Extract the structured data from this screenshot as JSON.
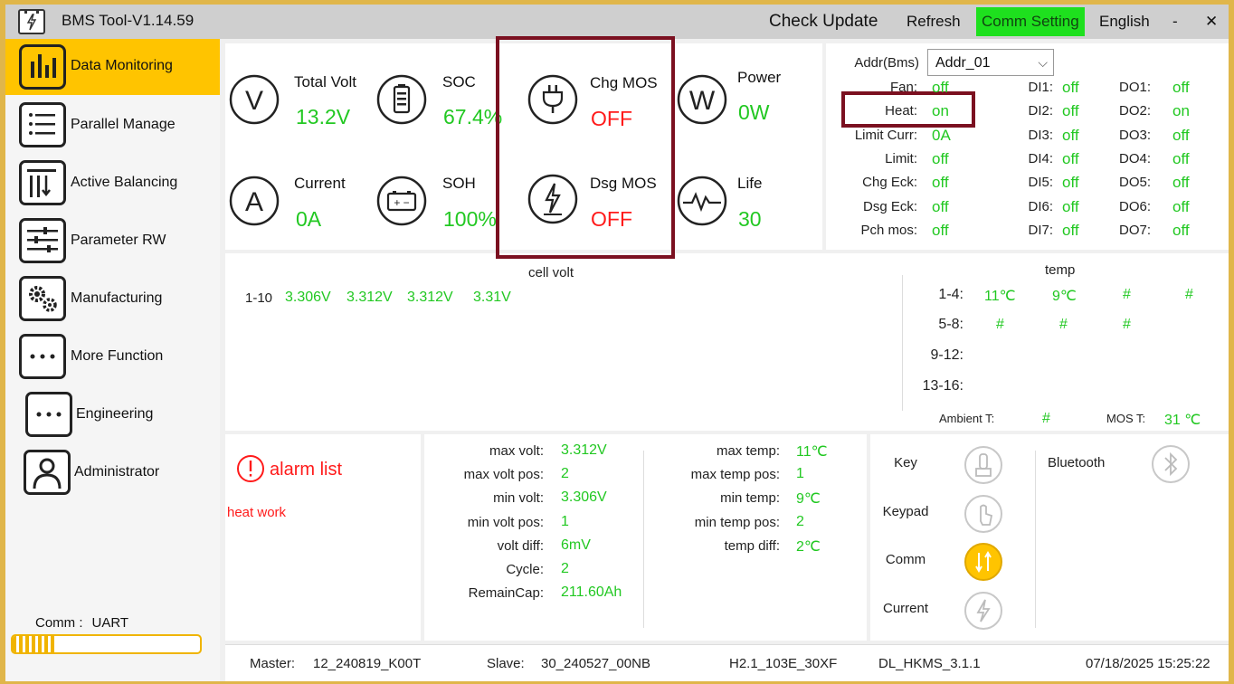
{
  "window": {
    "title": "BMS Tool-V1.14.59",
    "menu": {
      "check_update": "Check Update",
      "refresh": "Refresh",
      "comm_setting": "Comm Setting",
      "language": "English",
      "minimize": "-",
      "close": "✕"
    }
  },
  "sidebar": {
    "items": [
      {
        "label": "Data Monitoring",
        "icon": "bar-chart-icon",
        "active": true
      },
      {
        "label": "Parallel Manage",
        "icon": "list-icon"
      },
      {
        "label": "Active Balancing",
        "icon": "balance-icon"
      },
      {
        "label": "Parameter RW",
        "icon": "sliders-icon"
      },
      {
        "label": "Manufacturing",
        "icon": "gears-icon"
      },
      {
        "label": "More Function",
        "icon": "more-icon"
      },
      {
        "label": "Engineering",
        "icon": "more-icon"
      },
      {
        "label": "Administrator",
        "icon": "user-icon"
      }
    ],
    "comm_label": "Comm :",
    "comm_value": "UART",
    "comm_progress": 0.22
  },
  "gauges": {
    "total_volt": {
      "label": "Total Volt",
      "value": "13.2V",
      "icon_letter": "V"
    },
    "soc": {
      "label": "SOC",
      "value": "67.4%"
    },
    "chg_mos": {
      "label": "Chg MOS",
      "value": "OFF"
    },
    "power": {
      "label": "Power",
      "value": "0W",
      "icon_letter": "W"
    },
    "current": {
      "label": "Current",
      "value": "0A",
      "icon_letter": "A"
    },
    "soh": {
      "label": "SOH",
      "value": "100%"
    },
    "dsg_mos": {
      "label": "Dsg MOS",
      "value": "OFF"
    },
    "life": {
      "label": "Life",
      "value": "30"
    }
  },
  "io_panel": {
    "addr_label": "Addr(Bms)",
    "addr_value": "Addr_01",
    "rows": [
      {
        "label": "Fan:",
        "value": "off",
        "di_label": "DI1:",
        "di_value": "off",
        "do_label": "DO1:",
        "do_value": "off"
      },
      {
        "label": "Heat:",
        "value": "on",
        "di_label": "DI2:",
        "di_value": "off",
        "do_label": "DO2:",
        "do_value": "on"
      },
      {
        "label": "Limit Curr:",
        "value": "0A",
        "di_label": "DI3:",
        "di_value": "off",
        "do_label": "DO3:",
        "do_value": "off"
      },
      {
        "label": "Limit:",
        "value": "off",
        "di_label": "DI4:",
        "di_value": "off",
        "do_label": "DO4:",
        "do_value": "off"
      },
      {
        "label": "Chg Eck:",
        "value": "off",
        "di_label": "DI5:",
        "di_value": "off",
        "do_label": "DO5:",
        "do_value": "off"
      },
      {
        "label": "Dsg Eck:",
        "value": "off",
        "di_label": "DI6:",
        "di_value": "off",
        "do_label": "DO6:",
        "do_value": "off"
      },
      {
        "label": "Pch mos:",
        "value": "off",
        "di_label": "DI7:",
        "di_value": "off",
        "do_label": "DO7:",
        "do_value": "off"
      }
    ]
  },
  "cell_volt": {
    "title": "cell volt",
    "row_label": "1-10",
    "values": [
      "3.306V",
      "3.312V",
      "3.312V",
      "3.31V"
    ]
  },
  "temp": {
    "title": "temp",
    "rows": [
      {
        "label": "1-4:",
        "values": [
          "11℃",
          "9℃",
          "#",
          "#"
        ]
      },
      {
        "label": "5-8:",
        "values": [
          "#",
          "#",
          "#"
        ]
      },
      {
        "label": "9-12:",
        "values": []
      },
      {
        "label": "13-16:",
        "values": []
      }
    ],
    "ambient_label": "Ambient T:",
    "ambient_value": "#",
    "mos_label": "MOS T:",
    "mos_value": "31 ℃"
  },
  "alarm": {
    "title": "alarm list",
    "items": [
      "heat work"
    ]
  },
  "stats_left": [
    {
      "label": "max volt:",
      "value": "3.312V"
    },
    {
      "label": "max volt pos:",
      "value": "2"
    },
    {
      "label": "min volt:",
      "value": "3.306V"
    },
    {
      "label": "min volt pos:",
      "value": "1"
    },
    {
      "label": "volt diff:",
      "value": "6mV"
    },
    {
      "label": "Cycle:",
      "value": "2"
    },
    {
      "label": "RemainCap:",
      "value": "211.60Ah"
    }
  ],
  "stats_right": [
    {
      "label": "max temp:",
      "value": "11℃"
    },
    {
      "label": "max temp pos:",
      "value": "1"
    },
    {
      "label": "min temp:",
      "value": "9℃"
    },
    {
      "label": "min temp pos:",
      "value": "2"
    },
    {
      "label": "temp diff:",
      "value": "2℃"
    }
  ],
  "status_indicators": [
    {
      "label": "Key",
      "icon": "key-icon",
      "active": false
    },
    {
      "label": "Keypad",
      "icon": "touch-icon",
      "active": false
    },
    {
      "label": "Comm",
      "icon": "comm-icon",
      "active": true
    },
    {
      "label": "Current",
      "icon": "current-icon",
      "active": false
    }
  ],
  "bluetooth": {
    "label": "Bluetooth",
    "icon": "bluetooth-icon",
    "active": false
  },
  "footer": {
    "master_label": "Master:",
    "master_value": "12_240819_K00T",
    "slave_label": "Slave:",
    "slave_value": "30_240527_00NB",
    "hw_version": "H2.1_103E_30XF",
    "fw_version": "DL_HKMS_3.1.1",
    "datetime": "07/18/2025 15:25:22"
  },
  "colors": {
    "accent": "#ffc400",
    "good": "#22c822",
    "bad": "#ff1a1a",
    "comm_setting_bg": "#1ee01e",
    "highlight": "#7b1020"
  }
}
